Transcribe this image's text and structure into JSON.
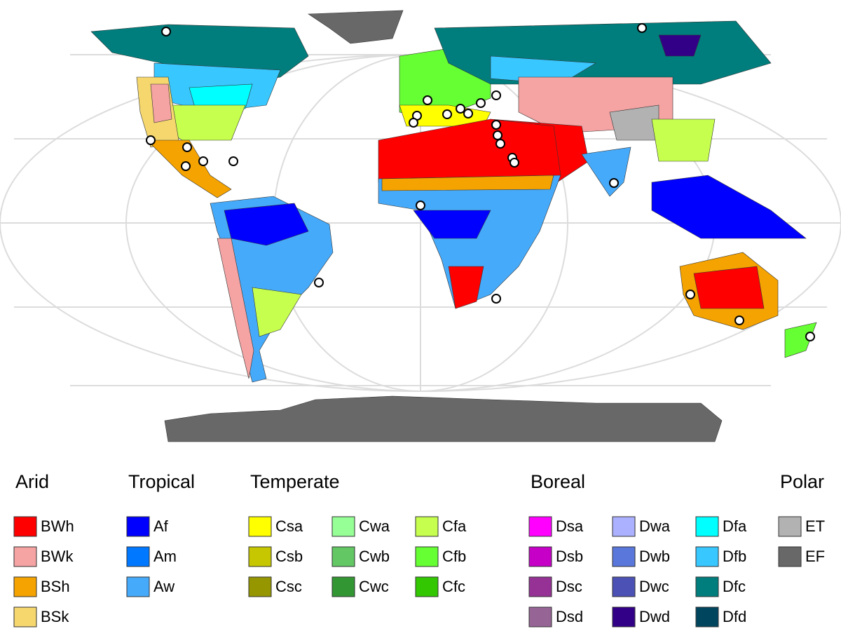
{
  "legend": [
    {
      "title": "Arid",
      "columns": [
        [
          {
            "code": "BWh",
            "color": "#ff0000"
          },
          {
            "code": "BWk",
            "color": "#f5a3a3"
          },
          {
            "code": "BSh",
            "color": "#f5a300"
          },
          {
            "code": "BSk",
            "color": "#f5d76e"
          }
        ]
      ]
    },
    {
      "title": "Tropical",
      "columns": [
        [
          {
            "code": "Af",
            "color": "#0000ff"
          },
          {
            "code": "Am",
            "color": "#0078ff"
          },
          {
            "code": "Aw",
            "color": "#46aafa"
          }
        ]
      ]
    },
    {
      "title": "Temperate",
      "columns": [
        [
          {
            "code": "Csa",
            "color": "#ffff00"
          },
          {
            "code": "Csb",
            "color": "#c6c700"
          },
          {
            "code": "Csc",
            "color": "#969600"
          }
        ],
        [
          {
            "code": "Cwa",
            "color": "#96ff96"
          },
          {
            "code": "Cwb",
            "color": "#63c764"
          },
          {
            "code": "Cwc",
            "color": "#329633"
          }
        ],
        [
          {
            "code": "Cfa",
            "color": "#c6ff4e"
          },
          {
            "code": "Cfb",
            "color": "#66ff33"
          },
          {
            "code": "Cfc",
            "color": "#33c701"
          }
        ]
      ]
    },
    {
      "title": "Boreal",
      "columns": [
        [
          {
            "code": "Dsa",
            "color": "#ff00ff"
          },
          {
            "code": "Dsb",
            "color": "#c600c7"
          },
          {
            "code": "Dsc",
            "color": "#963295"
          },
          {
            "code": "Dsd",
            "color": "#966495"
          }
        ],
        [
          {
            "code": "Dwa",
            "color": "#abb1ff"
          },
          {
            "code": "Dwb",
            "color": "#5a77db"
          },
          {
            "code": "Dwc",
            "color": "#4c51b5"
          },
          {
            "code": "Dwd",
            "color": "#320087"
          }
        ],
        [
          {
            "code": "Dfa",
            "color": "#00ffff"
          },
          {
            "code": "Dfb",
            "color": "#38c7ff"
          },
          {
            "code": "Dfc",
            "color": "#007e7d"
          },
          {
            "code": "Dfd",
            "color": "#00455e"
          }
        ]
      ]
    },
    {
      "title": "Polar",
      "columns": [
        [
          {
            "code": "ET",
            "color": "#b2b2b2"
          },
          {
            "code": "EF",
            "color": "#686868"
          }
        ]
      ]
    }
  ]
}
